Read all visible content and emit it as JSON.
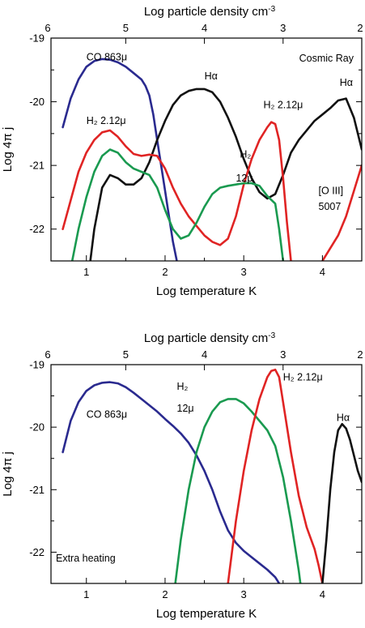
{
  "chart_data": [
    {
      "type": "line",
      "xlabel": "Log temperature K",
      "x2label": "Log particle density cm",
      "x2label_exp": "-3",
      "ylabel": "Log 4π j",
      "xlim": [
        0.55,
        4.5
      ],
      "ylim": [
        -22.5,
        -19
      ],
      "xticks": [
        "1",
        "2",
        "3",
        "4"
      ],
      "x2ticks": [
        {
          "at": 0.55,
          "label": "6"
        },
        {
          "at": 1.5,
          "label": "5"
        },
        {
          "at": 2.5,
          "label": "4"
        },
        {
          "at": 3.5,
          "label": "3"
        },
        {
          "at": 4.5,
          "label": "2"
        }
      ],
      "yticks": [
        "-19",
        "-20",
        "-21",
        "-22"
      ],
      "corner_label": "Cosmic Ray",
      "annotations": [
        {
          "text": "CO 863μ",
          "x": 1.0,
          "y": -19.35
        },
        {
          "text": "Hα",
          "x": 2.5,
          "y": -19.65
        },
        {
          "text": "Hα",
          "x": 4.22,
          "y": -19.75
        },
        {
          "text": "H₂ 2.12μ",
          "x": 1.0,
          "y": -20.35
        },
        {
          "text": "H₂ 2.12μ",
          "x": 3.25,
          "y": -20.1
        },
        {
          "text": "H₂",
          "x": 2.95,
          "y": -20.88
        },
        {
          "text": "12μ",
          "x": 2.9,
          "y": -21.25
        },
        {
          "text": "[O III]",
          "x": 3.95,
          "y": -21.45
        },
        {
          "text": "5007",
          "x": 3.95,
          "y": -21.7
        }
      ],
      "series": [
        {
          "color": "#2a2a8f",
          "x": [
            0.7,
            0.8,
            0.9,
            1.0,
            1.1,
            1.2,
            1.3,
            1.4,
            1.5,
            1.6,
            1.7,
            1.75,
            1.8,
            1.85,
            1.9,
            1.95,
            2.0,
            2.05,
            2.1,
            2.15
          ],
          "y": [
            -20.4,
            -19.95,
            -19.65,
            -19.45,
            -19.36,
            -19.33,
            -19.34,
            -19.38,
            -19.45,
            -19.55,
            -19.65,
            -19.75,
            -19.9,
            -20.2,
            -20.6,
            -21.0,
            -21.4,
            -21.8,
            -22.2,
            -22.5
          ]
        },
        {
          "color": "#111111",
          "x": [
            1.05,
            1.1,
            1.2,
            1.3,
            1.4,
            1.5,
            1.6,
            1.7,
            1.8,
            1.9,
            2.0,
            2.1,
            2.2,
            2.3,
            2.4,
            2.5,
            2.6,
            2.7,
            2.8,
            2.9,
            3.0,
            3.1,
            3.2,
            3.3,
            3.4,
            3.5,
            3.6,
            3.7,
            3.8,
            3.9,
            4.0,
            4.1,
            4.2,
            4.3,
            4.4,
            4.5
          ],
          "y": [
            -22.5,
            -22.0,
            -21.35,
            -21.15,
            -21.2,
            -21.3,
            -21.3,
            -21.2,
            -20.95,
            -20.6,
            -20.3,
            -20.05,
            -19.9,
            -19.83,
            -19.8,
            -19.8,
            -19.85,
            -20.0,
            -20.25,
            -20.55,
            -20.9,
            -21.2,
            -21.42,
            -21.52,
            -21.45,
            -21.15,
            -20.8,
            -20.6,
            -20.45,
            -20.3,
            -20.2,
            -20.1,
            -19.98,
            -19.95,
            -20.25,
            -20.75
          ]
        },
        {
          "color": "#e02424",
          "x": [
            0.7,
            0.8,
            0.9,
            1.0,
            1.1,
            1.2,
            1.3,
            1.4,
            1.5,
            1.6,
            1.7,
            1.8,
            1.9,
            2.0,
            2.1,
            2.2,
            2.3,
            2.4,
            2.5,
            2.6,
            2.7,
            2.8,
            2.9,
            3.0,
            3.1,
            3.2,
            3.3,
            3.35,
            3.4,
            3.45,
            3.5,
            3.55,
            3.6,
            3.65,
            3.7
          ],
          "y": [
            -22.0,
            -21.55,
            -21.1,
            -20.8,
            -20.6,
            -20.48,
            -20.45,
            -20.55,
            -20.7,
            -20.82,
            -20.85,
            -20.83,
            -20.85,
            -21.05,
            -21.35,
            -21.6,
            -21.8,
            -21.95,
            -22.1,
            -22.2,
            -22.25,
            -22.15,
            -21.8,
            -21.3,
            -20.9,
            -20.6,
            -20.4,
            -20.32,
            -20.35,
            -20.6,
            -21.2,
            -21.9,
            -22.5,
            -22.8,
            -23.0
          ],
          "x2": [
            3.9,
            4.0,
            4.1,
            4.2,
            4.3,
            4.4,
            4.5
          ],
          "y2": [
            -22.8,
            -22.5,
            -22.3,
            -22.1,
            -21.8,
            -21.4,
            -21.0
          ]
        },
        {
          "color": "#1a9a50",
          "x": [
            0.82,
            0.9,
            1.0,
            1.1,
            1.2,
            1.3,
            1.4,
            1.5,
            1.6,
            1.7,
            1.8,
            1.9,
            2.0,
            2.1,
            2.2,
            2.3,
            2.4,
            2.5,
            2.6,
            2.7,
            2.8,
            2.9,
            3.0,
            3.1,
            3.2,
            3.3,
            3.4,
            3.45,
            3.5
          ],
          "y": [
            -22.5,
            -22.0,
            -21.5,
            -21.1,
            -20.85,
            -20.75,
            -20.8,
            -20.95,
            -21.05,
            -21.1,
            -21.15,
            -21.35,
            -21.7,
            -22.0,
            -22.15,
            -22.1,
            -21.9,
            -21.65,
            -21.45,
            -21.35,
            -21.32,
            -21.3,
            -21.28,
            -21.28,
            -21.32,
            -21.48,
            -21.6,
            -22.0,
            -22.5
          ]
        }
      ]
    },
    {
      "type": "line",
      "xlabel": "Log temperature K",
      "x2label": "Log particle density cm",
      "x2label_exp": "-3",
      "ylabel": "Log 4π j",
      "xlim": [
        0.55,
        4.5
      ],
      "ylim": [
        -22.5,
        -19
      ],
      "xticks": [
        "1",
        "2",
        "3",
        "4"
      ],
      "x2ticks": [
        {
          "at": 0.55,
          "label": "6"
        },
        {
          "at": 1.5,
          "label": "5"
        },
        {
          "at": 2.5,
          "label": "4"
        },
        {
          "at": 3.5,
          "label": "3"
        },
        {
          "at": 4.5,
          "label": "2"
        }
      ],
      "yticks": [
        "-19",
        "-20",
        "-21",
        "-22"
      ],
      "corner_label": "Extra heating",
      "annotations": [
        {
          "text": "CO 863μ",
          "x": 1.0,
          "y": -19.85
        },
        {
          "text": "H₂",
          "x": 2.15,
          "y": -19.4
        },
        {
          "text": "12μ",
          "x": 2.15,
          "y": -19.75
        },
        {
          "text": "H₂ 2.12μ",
          "x": 3.5,
          "y": -19.25
        },
        {
          "text": "Hα",
          "x": 4.18,
          "y": -19.9
        }
      ],
      "series": [
        {
          "color": "#2a2a8f",
          "x": [
            0.7,
            0.8,
            0.9,
            1.0,
            1.1,
            1.2,
            1.3,
            1.4,
            1.5,
            1.6,
            1.7,
            1.8,
            1.9,
            2.0,
            2.1,
            2.2,
            2.3,
            2.4,
            2.5,
            2.6,
            2.7,
            2.8,
            2.9,
            3.0,
            3.1,
            3.2,
            3.3,
            3.4,
            3.45
          ],
          "y": [
            -20.4,
            -19.9,
            -19.6,
            -19.42,
            -19.33,
            -19.29,
            -19.28,
            -19.3,
            -19.36,
            -19.45,
            -19.55,
            -19.65,
            -19.75,
            -19.87,
            -19.98,
            -20.1,
            -20.25,
            -20.45,
            -20.7,
            -21.0,
            -21.35,
            -21.65,
            -21.85,
            -21.98,
            -22.08,
            -22.18,
            -22.28,
            -22.4,
            -22.5
          ]
        },
        {
          "color": "#1a9a50",
          "x": [
            2.13,
            2.2,
            2.3,
            2.4,
            2.5,
            2.6,
            2.7,
            2.8,
            2.9,
            3.0,
            3.1,
            3.2,
            3.3,
            3.4,
            3.5,
            3.6,
            3.65,
            3.7,
            3.72
          ],
          "y": [
            -22.5,
            -21.8,
            -21.0,
            -20.4,
            -20.0,
            -19.75,
            -19.6,
            -19.55,
            -19.55,
            -19.62,
            -19.75,
            -19.9,
            -20.05,
            -20.3,
            -20.8,
            -21.5,
            -21.9,
            -22.3,
            -22.5
          ]
        },
        {
          "color": "#e02424",
          "x": [
            2.8,
            2.85,
            2.9,
            3.0,
            3.1,
            3.2,
            3.3,
            3.35,
            3.4,
            3.45,
            3.5,
            3.6,
            3.7,
            3.8,
            3.9,
            3.95,
            4.0
          ],
          "y": [
            -22.5,
            -22.0,
            -21.5,
            -20.7,
            -20.05,
            -19.55,
            -19.2,
            -19.1,
            -19.08,
            -19.2,
            -19.6,
            -20.4,
            -21.1,
            -21.6,
            -21.95,
            -22.2,
            -22.5
          ]
        },
        {
          "color": "#111111",
          "x": [
            4.0,
            4.05,
            4.1,
            4.15,
            4.2,
            4.25,
            4.3,
            4.35,
            4.4,
            4.45,
            4.5
          ],
          "y": [
            -22.5,
            -21.8,
            -21.0,
            -20.4,
            -20.05,
            -19.95,
            -20.02,
            -20.2,
            -20.45,
            -20.7,
            -20.88
          ]
        }
      ]
    }
  ]
}
